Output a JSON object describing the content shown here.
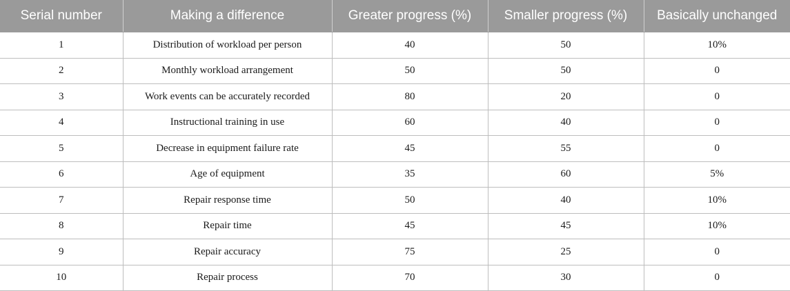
{
  "table": {
    "headers": [
      "Serial number",
      "Making a difference",
      "Greater progress (%)",
      "Smaller progress (%)",
      "Basically unchanged"
    ],
    "rows": [
      [
        "1",
        "Distribution of workload per person",
        "40",
        "50",
        "10%"
      ],
      [
        "2",
        "Monthly workload arrangement",
        "50",
        "50",
        "0"
      ],
      [
        "3",
        "Work events can be accurately recorded",
        "80",
        "20",
        "0"
      ],
      [
        "4",
        "Instructional training in use",
        "60",
        "40",
        "0"
      ],
      [
        "5",
        "Decrease in equipment failure rate",
        "45",
        "55",
        "0"
      ],
      [
        "6",
        "Age of equipment",
        "35",
        "60",
        "5%"
      ],
      [
        "7",
        "Repair response time",
        "50",
        "40",
        "10%"
      ],
      [
        "8",
        "Repair time",
        "45",
        "45",
        "10%"
      ],
      [
        "9",
        "Repair accuracy",
        "75",
        "25",
        "0"
      ],
      [
        "10",
        "Repair process",
        "70",
        "30",
        "0"
      ]
    ]
  }
}
